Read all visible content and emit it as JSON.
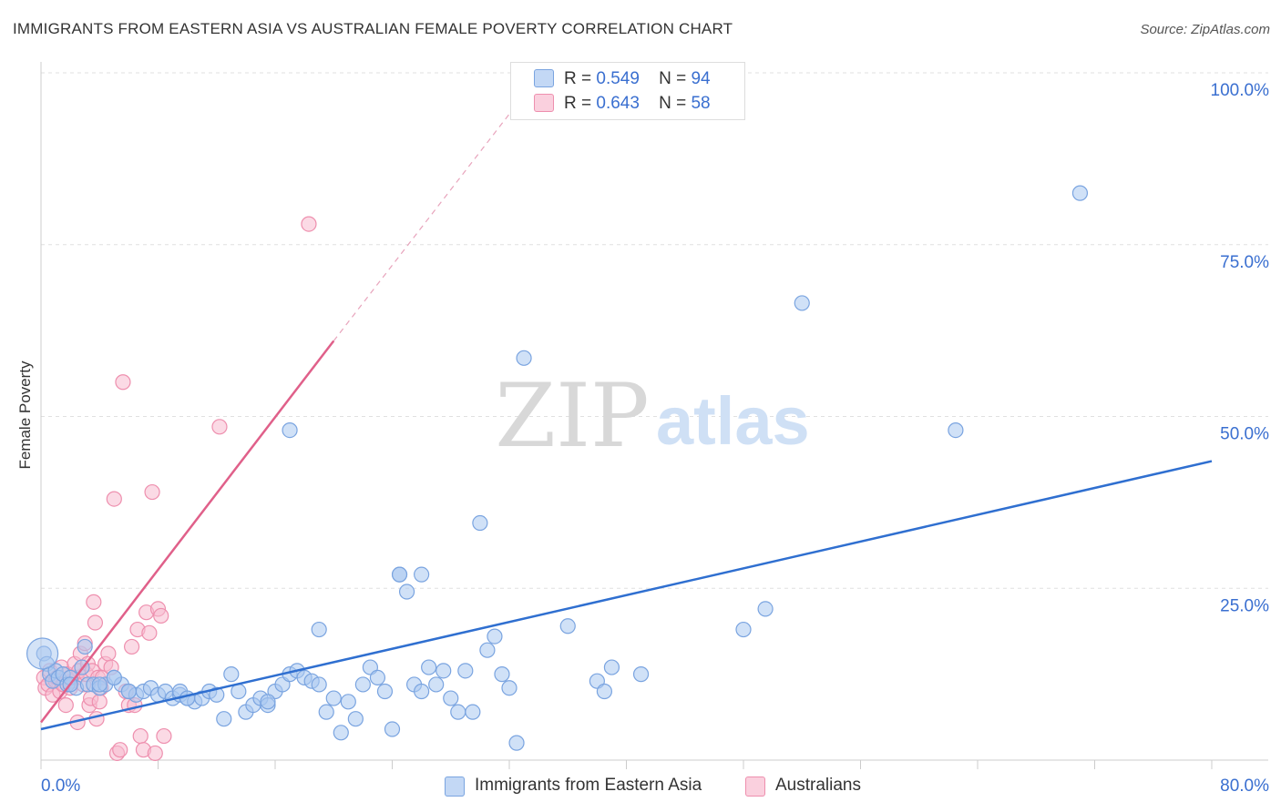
{
  "title": "IMMIGRANTS FROM EASTERN ASIA VS AUSTRALIAN FEMALE POVERTY CORRELATION CHART",
  "source": "Source: ZipAtlas.com",
  "watermark": {
    "zip": "ZIP",
    "atlas": "atlas"
  },
  "legend_top": {
    "rows": [
      {
        "r_label": "R =",
        "r_value": "0.549",
        "n_label": "N =",
        "n_value": "94"
      },
      {
        "r_label": "R =",
        "r_value": "0.643",
        "n_label": "N =",
        "n_value": "58"
      }
    ]
  },
  "legend_bottom": {
    "series1": "Immigrants from Eastern Asia",
    "series2": "Australians"
  },
  "colors": {
    "blue_fill": "#aac8f0",
    "blue_stroke": "#7aa4e0",
    "blue_line": "#2f6fd0",
    "pink_fill": "#f8bcd0",
    "pink_stroke": "#ee8fae",
    "pink_line": "#e0608a",
    "axis_label": "#3a6fd0",
    "grid": "#e0e0e0"
  },
  "chart_data": {
    "type": "scatter",
    "title": "IMMIGRANTS FROM EASTERN ASIA VS AUSTRALIAN FEMALE POVERTY CORRELATION CHART",
    "xlabel": "",
    "ylabel": "Female Poverty",
    "xlim": [
      0,
      80
    ],
    "ylim": [
      0,
      100
    ],
    "x_tick_labels": [
      "0.0%",
      "80.0%"
    ],
    "y_tick_labels": [
      "100.0%",
      "75.0%",
      "50.0%",
      "25.0%"
    ],
    "y_tick_values": [
      100,
      75,
      50,
      25
    ],
    "grid": true,
    "legend_position": "top-center",
    "series": [
      {
        "name": "Immigrants from Eastern Asia",
        "color": "blue",
        "r": 0.549,
        "n": 94,
        "trend": {
          "x": [
            0,
            80
          ],
          "y": [
            4.5,
            43.5
          ]
        },
        "points": [
          [
            0.2,
            15.5
          ],
          [
            0.4,
            14
          ],
          [
            0.6,
            12.5
          ],
          [
            0.8,
            11.5
          ],
          [
            1.0,
            13
          ],
          [
            1.2,
            12
          ],
          [
            1.5,
            12.5
          ],
          [
            1.8,
            11
          ],
          [
            2.0,
            12
          ],
          [
            2.4,
            10.5
          ],
          [
            2.8,
            13.5
          ],
          [
            3.2,
            11
          ],
          [
            3.6,
            11
          ],
          [
            4.0,
            10.5
          ],
          [
            4.4,
            11
          ],
          [
            5.0,
            12
          ],
          [
            5.5,
            11
          ],
          [
            6.0,
            10
          ],
          [
            6.5,
            9.5
          ],
          [
            7.0,
            10
          ],
          [
            7.5,
            10.5
          ],
          [
            8.0,
            9.5
          ],
          [
            8.5,
            10
          ],
          [
            9.0,
            9
          ],
          [
            9.5,
            9.5
          ],
          [
            10.0,
            9
          ],
          [
            10.5,
            8.5
          ],
          [
            11.0,
            9
          ],
          [
            11.5,
            10
          ],
          [
            12.0,
            9.5
          ],
          [
            12.5,
            6
          ],
          [
            13.0,
            12.5
          ],
          [
            13.5,
            10
          ],
          [
            14.0,
            7
          ],
          [
            14.5,
            8
          ],
          [
            15.0,
            9
          ],
          [
            15.5,
            8
          ],
          [
            16.0,
            10
          ],
          [
            16.5,
            11
          ],
          [
            17.0,
            12.5
          ],
          [
            17.5,
            13
          ],
          [
            18.0,
            12
          ],
          [
            18.5,
            11.5
          ],
          [
            19.0,
            11
          ],
          [
            19.5,
            7
          ],
          [
            20.0,
            9
          ],
          [
            20.5,
            4
          ],
          [
            21.0,
            8.5
          ],
          [
            21.5,
            6
          ],
          [
            22.0,
            11
          ],
          [
            22.5,
            13.5
          ],
          [
            23.0,
            12
          ],
          [
            23.5,
            10
          ],
          [
            24.0,
            4.5
          ],
          [
            24.5,
            27
          ],
          [
            25.0,
            24.5
          ],
          [
            25.5,
            11
          ],
          [
            26.0,
            10
          ],
          [
            26.5,
            13.5
          ],
          [
            27.0,
            11
          ],
          [
            27.5,
            13
          ],
          [
            28.0,
            9
          ],
          [
            28.5,
            7
          ],
          [
            29.0,
            13
          ],
          [
            29.5,
            7
          ],
          [
            30.0,
            34.5
          ],
          [
            30.5,
            16
          ],
          [
            31.0,
            18
          ],
          [
            31.5,
            12.5
          ],
          [
            32.0,
            10.5
          ],
          [
            32.5,
            2.5
          ],
          [
            33.0,
            58.5
          ],
          [
            36.0,
            19.5
          ],
          [
            38.0,
            11.5
          ],
          [
            38.5,
            10
          ],
          [
            39.0,
            13.5
          ],
          [
            41.0,
            12.5
          ],
          [
            48.0,
            19
          ],
          [
            49.5,
            22
          ],
          [
            52.0,
            66.5
          ],
          [
            62.5,
            48
          ],
          [
            71.0,
            82.5
          ],
          [
            17.0,
            48
          ],
          [
            3.0,
            16.5
          ],
          [
            6.0,
            10
          ],
          [
            9.5,
            10
          ],
          [
            15.5,
            8.5
          ],
          [
            19.0,
            19
          ],
          [
            24.5,
            27
          ],
          [
            26.0,
            27
          ],
          [
            2.0,
            11
          ],
          [
            5.0,
            12
          ],
          [
            4.0,
            11
          ],
          [
            10.0,
            9
          ]
        ]
      },
      {
        "name": "Australians",
        "color": "pink",
        "r": 0.643,
        "n": 58,
        "trend": {
          "x": [
            0,
            20
          ],
          "y": [
            5.5,
            61
          ]
        },
        "trend_dashed": {
          "x": [
            20,
            32
          ],
          "y": [
            61,
            94
          ]
        },
        "points": [
          [
            0.2,
            12
          ],
          [
            0.3,
            10.5
          ],
          [
            0.5,
            11
          ],
          [
            0.6,
            13
          ],
          [
            0.8,
            9.5
          ],
          [
            1.0,
            11.5
          ],
          [
            1.1,
            12
          ],
          [
            1.3,
            10
          ],
          [
            1.4,
            13.5
          ],
          [
            1.6,
            11
          ],
          [
            1.7,
            8
          ],
          [
            1.8,
            12.5
          ],
          [
            2.0,
            10.5
          ],
          [
            2.1,
            11.5
          ],
          [
            2.3,
            14
          ],
          [
            2.4,
            12
          ],
          [
            2.5,
            5.5
          ],
          [
            2.6,
            13
          ],
          [
            2.7,
            15.5
          ],
          [
            2.9,
            11
          ],
          [
            3.0,
            17
          ],
          [
            3.1,
            12.5
          ],
          [
            3.2,
            14
          ],
          [
            3.3,
            8
          ],
          [
            3.4,
            9
          ],
          [
            3.5,
            13
          ],
          [
            3.6,
            23
          ],
          [
            3.7,
            20
          ],
          [
            3.8,
            6
          ],
          [
            3.9,
            12
          ],
          [
            4.0,
            8.5
          ],
          [
            4.1,
            10.5
          ],
          [
            4.2,
            12
          ],
          [
            4.4,
            14
          ],
          [
            4.6,
            15.5
          ],
          [
            4.8,
            13.5
          ],
          [
            5.0,
            38
          ],
          [
            5.2,
            1
          ],
          [
            5.4,
            1.5
          ],
          [
            5.6,
            55
          ],
          [
            5.8,
            10
          ],
          [
            6.0,
            8
          ],
          [
            6.2,
            16.5
          ],
          [
            6.4,
            8
          ],
          [
            6.6,
            19
          ],
          [
            6.8,
            3.5
          ],
          [
            7.0,
            1.5
          ],
          [
            7.2,
            21.5
          ],
          [
            7.4,
            18.5
          ],
          [
            7.6,
            39
          ],
          [
            7.8,
            1
          ],
          [
            8.0,
            22
          ],
          [
            8.2,
            21
          ],
          [
            8.4,
            3.5
          ],
          [
            12.2,
            48.5
          ],
          [
            18.3,
            78
          ],
          [
            1.5,
            11
          ],
          [
            2.0,
            12
          ]
        ]
      }
    ]
  }
}
